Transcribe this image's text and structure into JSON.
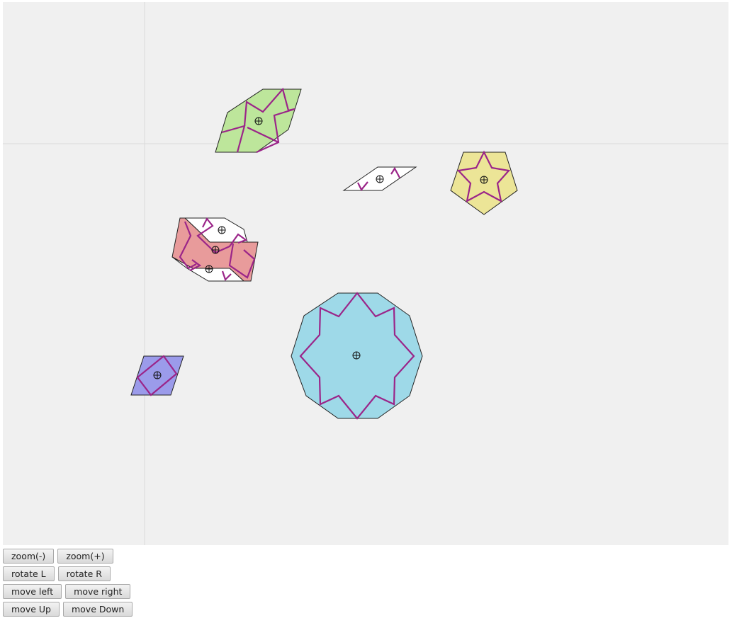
{
  "colors": {
    "canvas_bg": "#f0f0f0",
    "axis": "#dadada",
    "strap": "#9b2589",
    "tile_green": "#bde69b",
    "tile_yellow": "#ece597",
    "tile_pink": "#e89b9b",
    "tile_white": "#ffffff",
    "tile_blue": "#9ed9e8",
    "tile_purple": "#9b9bea"
  },
  "tiles": [
    {
      "name": "green-hexagon-tile",
      "shape": "elongated hexagon",
      "color": "tile_green"
    },
    {
      "name": "white-thin-rhombus-tile",
      "shape": "thin rhombus",
      "color": "tile_white"
    },
    {
      "name": "yellow-pentagon-tile",
      "shape": "pentagon",
      "color": "tile_yellow"
    },
    {
      "name": "composite-bowtie-tile",
      "shape": "composite",
      "color": "tile_pink"
    },
    {
      "name": "blue-decagon-tile",
      "shape": "decagon",
      "color": "tile_blue"
    },
    {
      "name": "purple-rhombus-tile",
      "shape": "rhombus",
      "color": "tile_purple"
    }
  ],
  "controls": {
    "zoom_out": "zoom(-)",
    "zoom_in": "zoom(+)",
    "rotate_left": "rotate L",
    "rotate_right": "rotate R",
    "move_left": "move left",
    "move_right": "move right",
    "move_up": "move Up",
    "move_down": "move Down"
  }
}
